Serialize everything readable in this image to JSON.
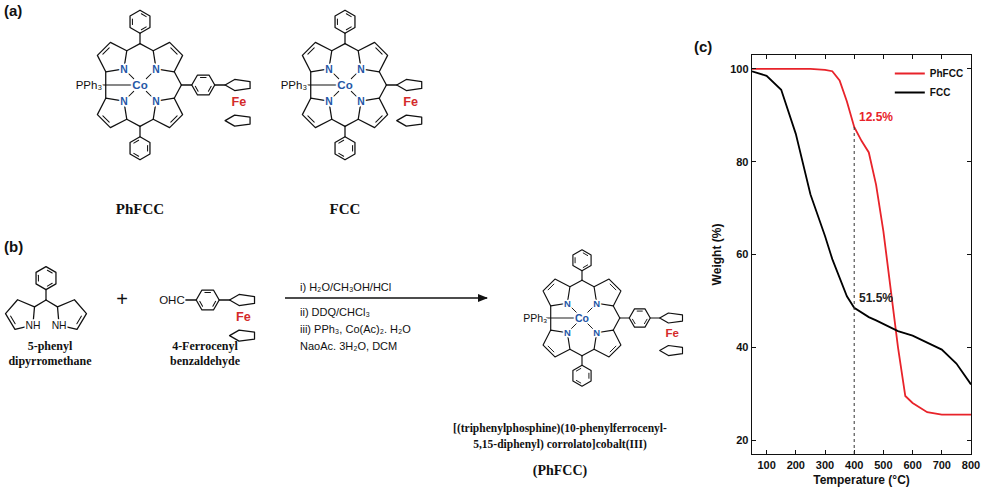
{
  "panels": {
    "a": {
      "label": "(a)",
      "molecules": [
        {
          "name": "PhFCC"
        },
        {
          "name": "FCC"
        }
      ],
      "atoms": {
        "ligand": "PPh₃",
        "metal": "Co",
        "nitrogen": "N",
        "iron": "Fe"
      }
    },
    "b": {
      "label": "(b)",
      "reactants": [
        {
          "name": [
            "5-phenyl",
            "dipyrromethane"
          ],
          "group": "NH"
        },
        {
          "name": [
            "4-Ferrocenyl",
            "benzaldehyde"
          ],
          "group": "OHC",
          "iron": "Fe"
        }
      ],
      "plus": "+",
      "conditions": [
        "i) H₂O/CH₃OH/HCl",
        "ii) DDQ/CHCl₃",
        "iii) PPh₃, Co(Ac)₂. H₂O",
        "NaoAc. 3H₂O, DCM"
      ],
      "product": {
        "name": [
          "[(triphenylphosphine)(10-phenylferrocenyl-",
          "5,15-diphenyl) corrolato]cobalt(III)"
        ],
        "short": "(PhFCC)"
      }
    },
    "c": {
      "label": "(c)"
    }
  },
  "chart_data": {
    "type": "line",
    "x_label": "Temperature (°C)",
    "y_label": "Weight (%)",
    "x": [
      50,
      100,
      150,
      200,
      250,
      300,
      325,
      350,
      375,
      400,
      425,
      450,
      475,
      500,
      525,
      550,
      575,
      600,
      650,
      700,
      750,
      800
    ],
    "series": [
      {
        "name": "PhFCC",
        "color": "#e8232a",
        "values": [
          100,
          100,
          100,
          100,
          100,
          99.8,
          99.5,
          97.5,
          93,
          87.5,
          84.5,
          82,
          75,
          65,
          52,
          40,
          29.5,
          28,
          26,
          25.5,
          25.5,
          25.5
        ]
      },
      {
        "name": "FCC",
        "color": "#000000",
        "values": [
          99.5,
          98.5,
          95.5,
          86,
          73,
          64,
          59,
          55,
          51,
          48.5,
          47.5,
          46.5,
          45.8,
          45,
          44.3,
          43.5,
          43,
          42.5,
          41,
          39.5,
          36.5,
          32
        ]
      }
    ],
    "xlim": [
      50,
      800
    ],
    "xticks": [
      100,
      200,
      300,
      400,
      500,
      600,
      700,
      800
    ],
    "ylim": [
      17,
      103
    ],
    "yticks": [
      20,
      40,
      60,
      80,
      100
    ],
    "vlines": [
      400
    ],
    "annotations": [
      {
        "text": "12.5%",
        "x": 400,
        "y": 87.5,
        "color": "#e8232a"
      },
      {
        "text": "51.5%",
        "x": 400,
        "y": 48.5,
        "color": "#222222"
      }
    ],
    "grid": false,
    "legend": "upper right"
  }
}
